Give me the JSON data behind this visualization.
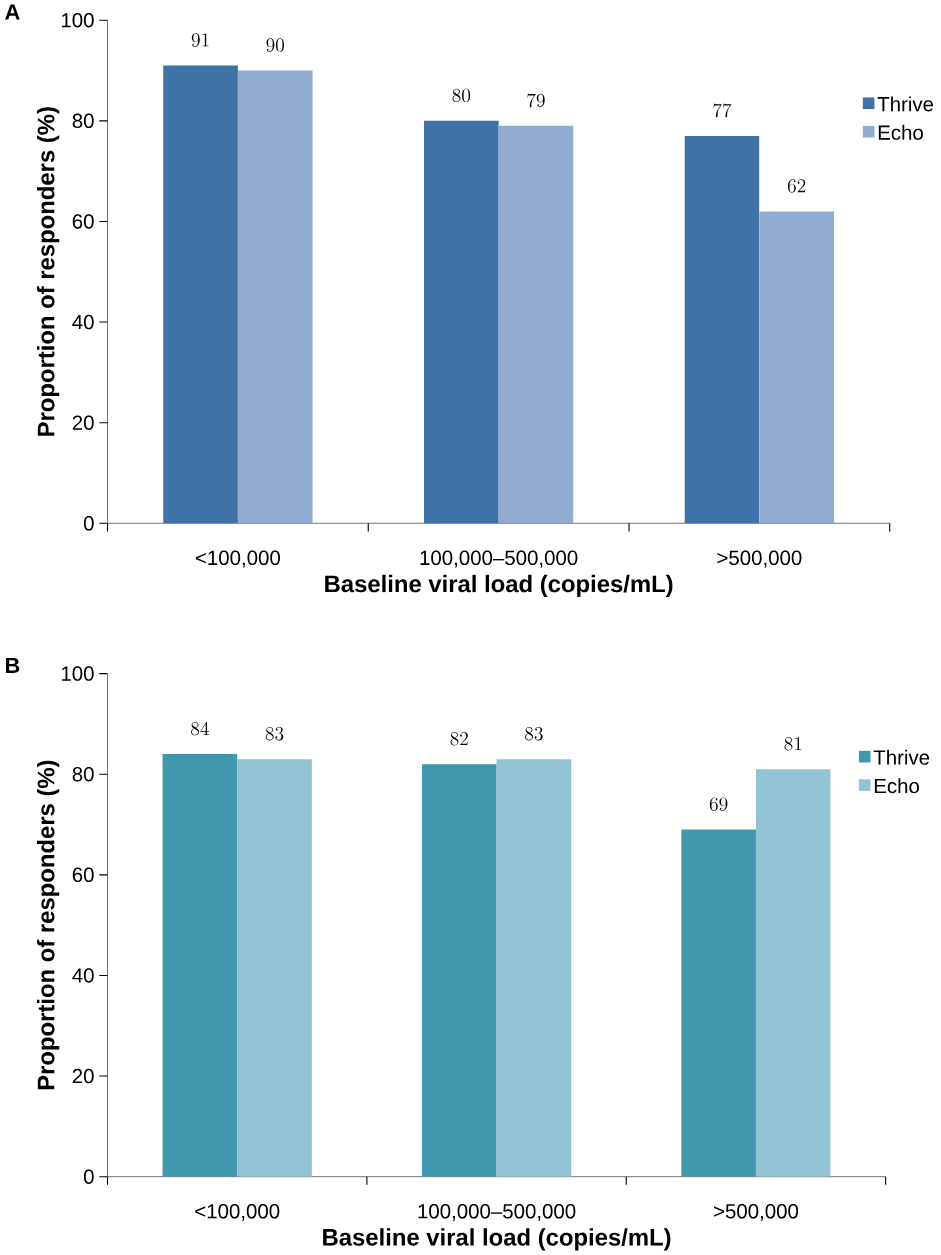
{
  "chart_data": [
    {
      "type": "bar",
      "title": "A",
      "xlabel": "Baseline viral load (copies/mL)",
      "ylabel": "Proportion of responders (%)",
      "categories": [
        "<100,000",
        "100,000–500,000",
        ">500,000"
      ],
      "series": [
        {
          "name": "Thrive",
          "color": "#3f72a6",
          "values": [
            91,
            80,
            77
          ]
        },
        {
          "name": "Echo",
          "color": "#92abd0",
          "values": [
            90,
            79,
            62
          ]
        }
      ],
      "ylim": [
        0,
        100
      ],
      "yticks": [
        0,
        20,
        40,
        60,
        80,
        100
      ],
      "data_labels": true,
      "legend": "top right"
    },
    {
      "type": "bar",
      "title": "B",
      "xlabel": "Baseline viral load (copies/mL)",
      "ylabel": "Proportion of responders (%)",
      "categories": [
        "<100,000",
        "100,000–500,000",
        ">500,000"
      ],
      "series": [
        {
          "name": "Thrive",
          "color": "#3f98ae",
          "values": [
            84,
            82,
            69
          ]
        },
        {
          "name": "Echo",
          "color": "#91c3d4",
          "values": [
            83,
            83,
            81
          ]
        }
      ],
      "ylim": [
        0,
        100
      ],
      "yticks": [
        0,
        20,
        40,
        60,
        80,
        100
      ],
      "data_labels": true,
      "legend": "top right"
    }
  ]
}
